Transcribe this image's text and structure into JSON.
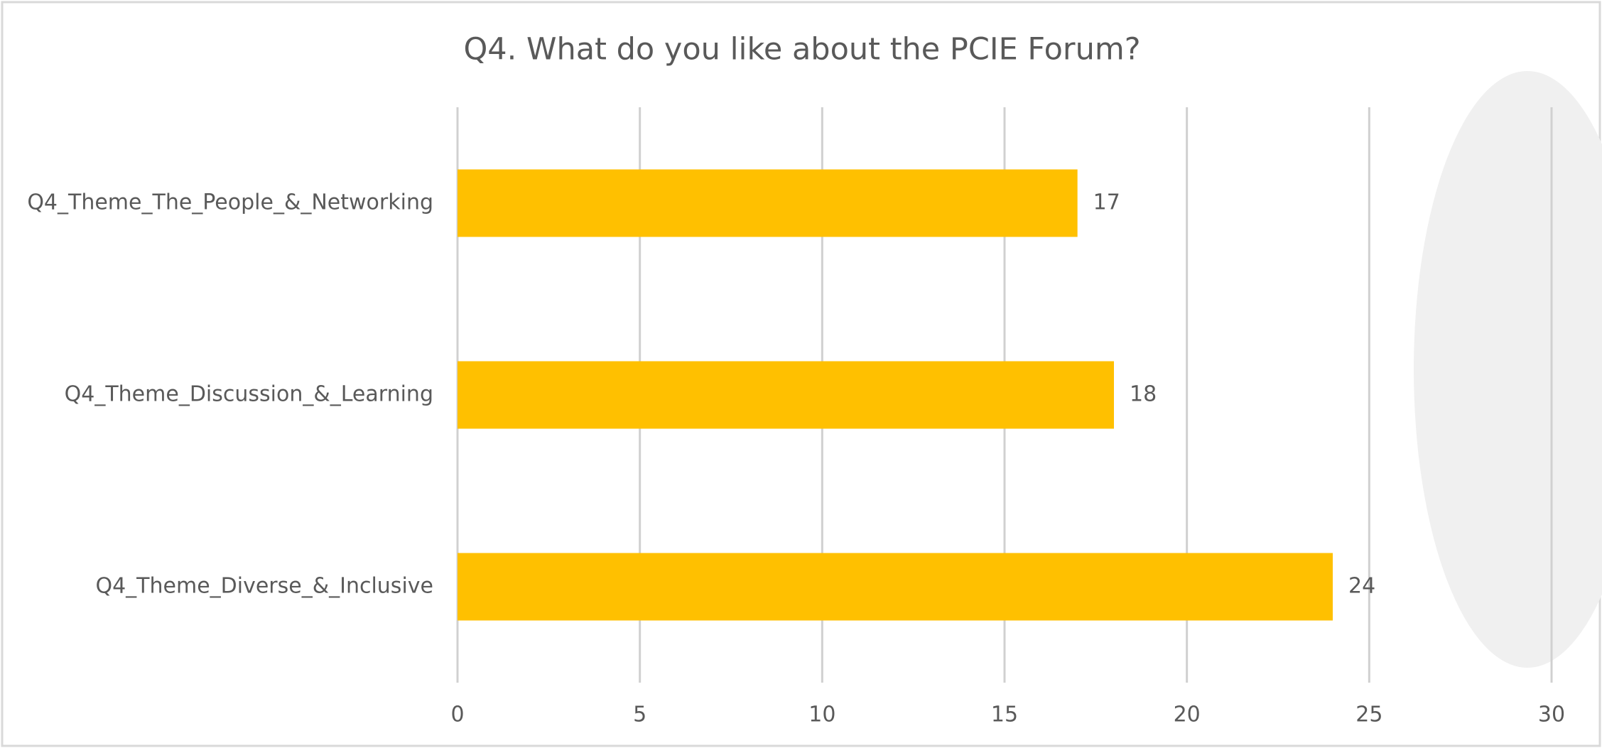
{
  "chart_data": {
    "type": "bar",
    "orientation": "horizontal",
    "title": "Q4. What do you like about the PCIE Forum?",
    "categories": [
      "Q4_Theme_The_People_&_Networking",
      "Q4_Theme_Discussion_&_Learning",
      "Q4_Theme_Diverse_&_Inclusive"
    ],
    "values": [
      17,
      18,
      24
    ],
    "color": "#ffc000",
    "xlim": [
      0,
      30
    ],
    "xticks": [
      0,
      5,
      10,
      15,
      20,
      25,
      30
    ],
    "grid": true
  }
}
